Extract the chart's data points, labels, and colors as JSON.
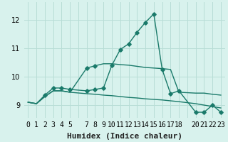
{
  "xlabel": "Humidex (Indice chaleur)",
  "background_color": "#d8f2ed",
  "grid_color": "#b8ddd6",
  "line_color": "#1a7a6a",
  "xlim": [
    -0.5,
    23.5
  ],
  "ylim": [
    8.55,
    12.6
  ],
  "yticks": [
    9,
    10,
    11,
    12
  ],
  "xtick_labels": [
    "0",
    "1",
    "2",
    "3",
    "4",
    "5",
    "",
    "7",
    "8",
    "9",
    "10",
    "11",
    "12",
    "13",
    "14",
    "15",
    "16",
    "17",
    "18",
    "",
    "20",
    "21",
    "22",
    "23"
  ],
  "line1_x": [
    0,
    1,
    2,
    3,
    4,
    5,
    7,
    8,
    9,
    10,
    11,
    12,
    13,
    14,
    15,
    16,
    17,
    18,
    20,
    21,
    22,
    23
  ],
  "line1_y": [
    9.1,
    9.05,
    9.35,
    9.6,
    9.6,
    9.55,
    9.5,
    9.55,
    9.6,
    10.4,
    10.95,
    11.15,
    11.55,
    11.9,
    12.2,
    10.25,
    9.4,
    9.5,
    8.75,
    8.75,
    9.0,
    8.75
  ],
  "line1_markers": [
    2,
    3,
    4,
    5,
    7,
    8,
    9,
    10,
    11,
    12,
    13,
    14,
    15,
    16,
    17,
    18,
    20,
    21,
    22,
    23
  ],
  "line2_x": [
    0,
    1,
    2,
    3,
    4,
    5,
    7,
    8,
    9,
    10,
    11,
    12,
    13,
    14,
    15,
    16,
    17,
    18,
    20,
    21,
    22,
    23
  ],
  "line2_y": [
    9.1,
    9.05,
    9.3,
    9.5,
    9.5,
    9.45,
    9.4,
    9.38,
    9.35,
    9.33,
    9.3,
    9.27,
    9.25,
    9.22,
    9.2,
    9.18,
    9.15,
    9.12,
    9.05,
    9.0,
    8.95,
    8.9
  ],
  "line2_markers": [],
  "line3_x": [
    0,
    1,
    2,
    3,
    4,
    5,
    7,
    8,
    9,
    10,
    11,
    12,
    13,
    14,
    15,
    16,
    17,
    18,
    20,
    21,
    22,
    23
  ],
  "line3_y": [
    9.1,
    9.05,
    9.3,
    9.5,
    9.5,
    9.45,
    10.3,
    10.38,
    10.45,
    10.45,
    10.42,
    10.4,
    10.36,
    10.32,
    10.3,
    10.28,
    10.25,
    9.45,
    9.42,
    9.42,
    9.38,
    9.35
  ],
  "line3_markers": [
    7,
    8
  ],
  "fontsize_label": 8,
  "fontsize_tick": 7
}
